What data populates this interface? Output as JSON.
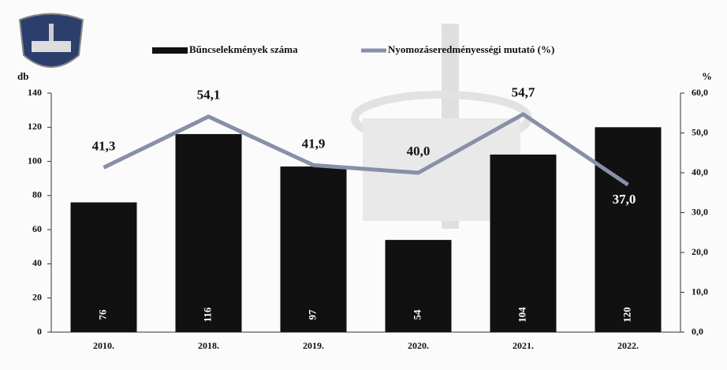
{
  "chart_data": {
    "type": "bar",
    "categories": [
      "2010.",
      "2018.",
      "2019.",
      "2020.",
      "2021.",
      "2022."
    ],
    "series": [
      {
        "name": "Bűncselekmények száma",
        "type": "bar",
        "color": "#111111",
        "values": [
          76,
          116,
          97,
          54,
          104,
          120
        ]
      },
      {
        "name": "Nyomozáseredményességi mutató (%)",
        "type": "line",
        "axis": "y2",
        "color": "#8790a6",
        "values": [
          41.3,
          54.1,
          41.9,
          40.0,
          54.7,
          37.0
        ],
        "value_labels": [
          "41,3",
          "54,1",
          "41,9",
          "40,0",
          "54,7",
          "37,0"
        ]
      }
    ],
    "ylabel": "db",
    "y2label": "%",
    "ylim": [
      0,
      140
    ],
    "yticks": [
      0,
      20,
      40,
      60,
      80,
      100,
      120,
      140
    ],
    "y2lim": [
      0,
      60
    ],
    "y2ticks": [
      {
        "value": 0,
        "label": "0,0"
      },
      {
        "value": 10,
        "label": "10,0"
      },
      {
        "value": 20,
        "label": "20,0"
      },
      {
        "value": 30,
        "label": "30,0"
      },
      {
        "value": 40,
        "label": "40,0"
      },
      {
        "value": 50,
        "label": "50,0"
      },
      {
        "value": 60,
        "label": "60,0"
      }
    ]
  }
}
